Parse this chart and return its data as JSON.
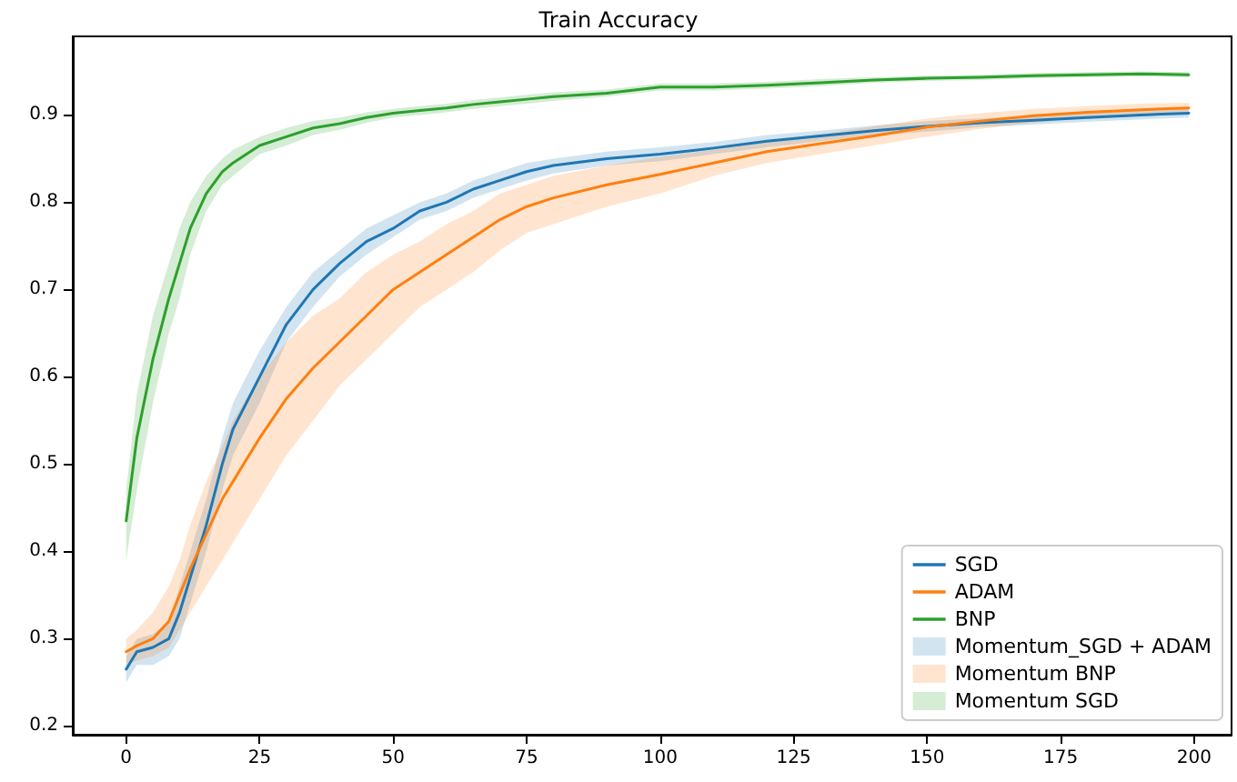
{
  "chart_data": {
    "type": "line",
    "title": "Train Accuracy",
    "x": [
      0,
      2,
      5,
      8,
      10,
      12,
      15,
      18,
      20,
      25,
      30,
      35,
      40,
      45,
      50,
      55,
      60,
      65,
      70,
      75,
      80,
      90,
      100,
      110,
      120,
      130,
      140,
      150,
      160,
      170,
      180,
      190,
      199
    ],
    "xlim": [
      -10,
      207
    ],
    "xticks": [
      0,
      25,
      50,
      75,
      100,
      125,
      150,
      175,
      200
    ],
    "ylim": [
      0.19,
      0.99
    ],
    "yticks": [
      0.2,
      0.3,
      0.4,
      0.5,
      0.6,
      0.7,
      0.8,
      0.9
    ],
    "legend": "bottom right",
    "marker": "none",
    "line_style": "solid",
    "series": [
      {
        "name": "SGD",
        "color": "#1f77b4",
        "values": [
          0.265,
          0.285,
          0.29,
          0.3,
          0.33,
          0.37,
          0.43,
          0.5,
          0.54,
          0.6,
          0.66,
          0.7,
          0.73,
          0.755,
          0.77,
          0.79,
          0.8,
          0.815,
          0.825,
          0.835,
          0.842,
          0.85,
          0.855,
          0.862,
          0.87,
          0.876,
          0.882,
          0.887,
          0.891,
          0.894,
          0.897,
          0.9,
          0.902
        ],
        "lower": [
          0.25,
          0.27,
          0.27,
          0.28,
          0.3,
          0.34,
          0.4,
          0.47,
          0.51,
          0.57,
          0.64,
          0.68,
          0.715,
          0.74,
          0.76,
          0.78,
          0.79,
          0.805,
          0.815,
          0.825,
          0.833,
          0.842,
          0.847,
          0.855,
          0.863,
          0.87,
          0.876,
          0.881,
          0.886,
          0.889,
          0.892,
          0.895,
          0.897
        ],
        "upper": [
          0.28,
          0.3,
          0.305,
          0.32,
          0.36,
          0.4,
          0.46,
          0.53,
          0.57,
          0.63,
          0.68,
          0.72,
          0.745,
          0.77,
          0.785,
          0.8,
          0.81,
          0.825,
          0.835,
          0.845,
          0.85,
          0.858,
          0.863,
          0.869,
          0.877,
          0.882,
          0.888,
          0.893,
          0.896,
          0.899,
          0.902,
          0.905,
          0.907
        ]
      },
      {
        "name": "ADAM",
        "color": "#ff7f0e",
        "values": [
          0.285,
          0.292,
          0.3,
          0.32,
          0.35,
          0.38,
          0.42,
          0.46,
          0.48,
          0.53,
          0.575,
          0.61,
          0.64,
          0.67,
          0.7,
          0.72,
          0.74,
          0.76,
          0.78,
          0.795,
          0.805,
          0.82,
          0.832,
          0.845,
          0.858,
          0.867,
          0.876,
          0.886,
          0.893,
          0.899,
          0.903,
          0.906,
          0.908
        ],
        "lower": [
          0.27,
          0.275,
          0.28,
          0.29,
          0.31,
          0.33,
          0.36,
          0.39,
          0.41,
          0.46,
          0.51,
          0.55,
          0.59,
          0.62,
          0.65,
          0.68,
          0.7,
          0.72,
          0.745,
          0.765,
          0.775,
          0.795,
          0.81,
          0.83,
          0.845,
          0.855,
          0.865,
          0.875,
          0.884,
          0.891,
          0.896,
          0.9,
          0.902
        ],
        "upper": [
          0.3,
          0.31,
          0.33,
          0.36,
          0.39,
          0.43,
          0.48,
          0.52,
          0.55,
          0.6,
          0.64,
          0.67,
          0.69,
          0.72,
          0.74,
          0.755,
          0.775,
          0.79,
          0.81,
          0.82,
          0.83,
          0.842,
          0.852,
          0.86,
          0.87,
          0.878,
          0.887,
          0.896,
          0.902,
          0.907,
          0.91,
          0.913,
          0.914
        ]
      },
      {
        "name": "BNP",
        "color": "#2ca02c",
        "values": [
          0.435,
          0.53,
          0.62,
          0.69,
          0.73,
          0.77,
          0.81,
          0.835,
          0.845,
          0.865,
          0.875,
          0.885,
          0.89,
          0.897,
          0.902,
          0.905,
          0.908,
          0.912,
          0.915,
          0.918,
          0.921,
          0.925,
          0.932,
          0.932,
          0.934,
          0.937,
          0.94,
          0.942,
          0.943,
          0.945,
          0.946,
          0.947,
          0.946
        ],
        "lower": [
          0.39,
          0.47,
          0.57,
          0.65,
          0.69,
          0.74,
          0.79,
          0.82,
          0.83,
          0.855,
          0.865,
          0.877,
          0.883,
          0.891,
          0.897,
          0.9,
          0.903,
          0.907,
          0.91,
          0.913,
          0.916,
          0.921,
          0.928,
          0.928,
          0.93,
          0.933,
          0.937,
          0.939,
          0.94,
          0.942,
          0.943,
          0.944,
          0.943
        ],
        "upper": [
          0.47,
          0.58,
          0.67,
          0.73,
          0.77,
          0.8,
          0.83,
          0.85,
          0.86,
          0.875,
          0.885,
          0.893,
          0.897,
          0.903,
          0.907,
          0.91,
          0.913,
          0.917,
          0.92,
          0.923,
          0.926,
          0.929,
          0.936,
          0.936,
          0.938,
          0.941,
          0.943,
          0.945,
          0.946,
          0.948,
          0.949,
          0.95,
          0.949
        ]
      },
      {
        "type": "area",
        "name": "Momentum_SGD + ADAM",
        "color": "#1f77b4",
        "values": [
          null,
          null,
          null,
          null,
          null,
          null,
          null,
          null,
          null,
          null,
          null,
          null,
          null,
          null,
          null,
          null,
          null,
          null,
          null,
          null,
          null,
          null,
          null,
          null,
          null,
          null,
          null,
          null,
          null,
          null,
          null,
          null,
          null
        ]
      },
      {
        "type": "area",
        "name": "Momentum BNP",
        "color": "#ff7f0e",
        "values": [
          null,
          null,
          null,
          null,
          null,
          null,
          null,
          null,
          null,
          null,
          null,
          null,
          null,
          null,
          null,
          null,
          null,
          null,
          null,
          null,
          null,
          null,
          null,
          null,
          null,
          null,
          null,
          null,
          null,
          null,
          null,
          null,
          null
        ]
      },
      {
        "type": "area",
        "name": "Momentum SGD",
        "color": "#2ca02c",
        "values": [
          null,
          null,
          null,
          null,
          null,
          null,
          null,
          null,
          null,
          null,
          null,
          null,
          null,
          null,
          null,
          null,
          null,
          null,
          null,
          null,
          null,
          null,
          null,
          null,
          null,
          null,
          null,
          null,
          null,
          null,
          null,
          null,
          null
        ]
      }
    ]
  }
}
